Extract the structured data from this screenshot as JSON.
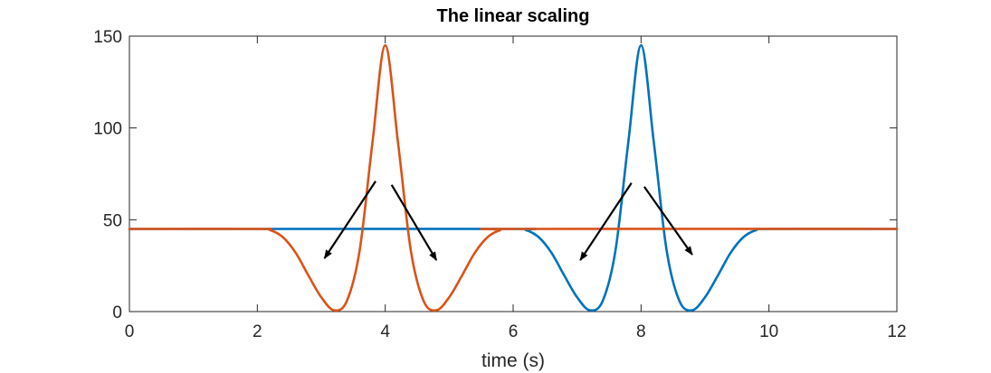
{
  "chart_data": {
    "type": "line",
    "title": "The linear scaling",
    "xlabel": "time (s)",
    "ylabel": "",
    "xlim": [
      0,
      12
    ],
    "ylim": [
      0,
      150
    ],
    "xticks": [
      0,
      2,
      4,
      6,
      8,
      10,
      12
    ],
    "yticks": [
      0,
      50,
      100,
      150
    ],
    "xtick_labels": [
      "0",
      "2",
      "4",
      "6",
      "8",
      "10",
      "12"
    ],
    "ytick_labels": [
      "0",
      "50",
      "100",
      "150"
    ],
    "grid": false,
    "legend": "none",
    "series": [
      {
        "color": "#0072BD",
        "x": [
          0,
          2,
          6,
          6.2,
          6.4,
          6.6,
          6.8,
          7.0,
          7.2,
          7.4,
          7.6,
          7.8,
          8.0,
          8.2,
          8.4,
          8.6,
          8.8,
          9.0,
          9.2,
          9.4,
          9.6,
          9.8,
          10,
          12
        ],
        "y": [
          45,
          45,
          45,
          44.4,
          40.5,
          32,
          19.6,
          7.8,
          0.7,
          5.8,
          33.3,
          92.0,
          145,
          92.0,
          33.3,
          5.8,
          0.7,
          7.8,
          19.6,
          32,
          40.5,
          44.4,
          45,
          45
        ]
      },
      {
        "color": "#D95319",
        "x": [
          0,
          2,
          2.2,
          2.4,
          2.6,
          2.8,
          3.0,
          3.2,
          3.4,
          3.6,
          3.8,
          4.0,
          4.2,
          4.4,
          4.6,
          4.8,
          5.0,
          5.2,
          5.4,
          5.6,
          5.8,
          6,
          12
        ],
        "y": [
          45,
          45,
          44.4,
          40.5,
          32,
          19.6,
          7.8,
          0.7,
          5.8,
          33.3,
          92.0,
          145,
          92.0,
          33.3,
          5.8,
          0.7,
          7.8,
          19.6,
          32,
          40.5,
          44.4,
          45,
          45
        ]
      }
    ],
    "annotations": [
      {
        "type": "arrow",
        "from": [
          3.85,
          71
        ],
        "to": [
          3.05,
          29
        ]
      },
      {
        "type": "arrow",
        "from": [
          4.1,
          69
        ],
        "to": [
          4.8,
          28
        ]
      },
      {
        "type": "arrow",
        "from": [
          7.85,
          70
        ],
        "to": [
          7.05,
          28
        ]
      },
      {
        "type": "arrow",
        "from": [
          8.05,
          68
        ],
        "to": [
          8.8,
          31
        ]
      }
    ]
  }
}
